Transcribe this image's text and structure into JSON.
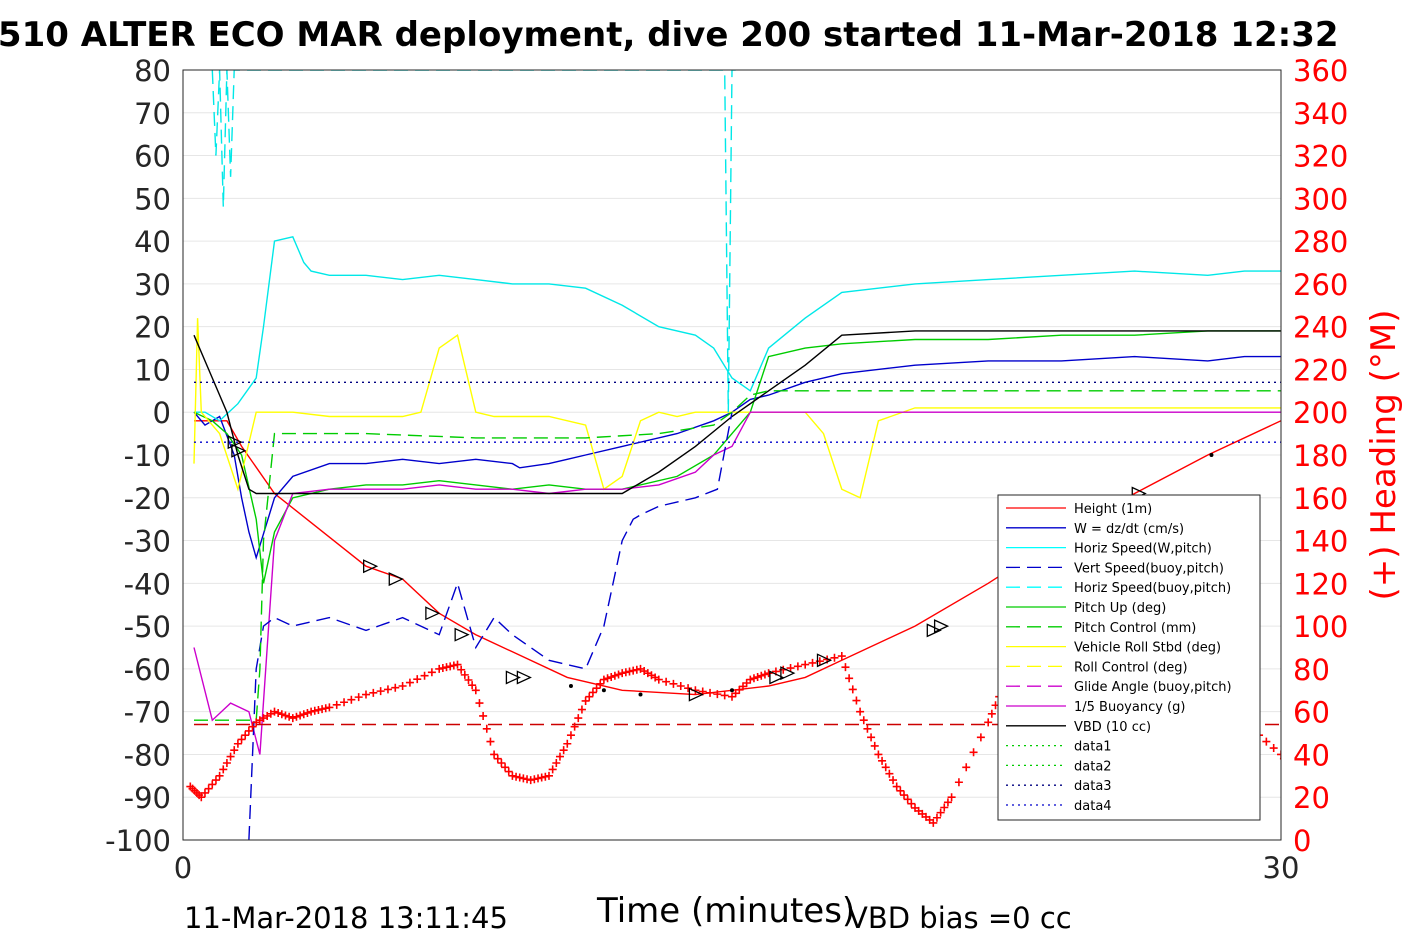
{
  "chart_data": {
    "type": "line",
    "title": "G510 ALTER ECO MAR deployment, dive 200 started 11-Mar-2018 12:32",
    "xlabel": "Time (minutes)",
    "ylabel_right": "(+) Heading (°M)",
    "xlim": [
      0,
      30
    ],
    "ylim_left": [
      -100,
      80
    ],
    "ylim_right": [
      0,
      360
    ],
    "xticks": [
      "0",
      "30"
    ],
    "yticks_left": [
      "80",
      "70",
      "60",
      "50",
      "40",
      "30",
      "20",
      "10",
      "0",
      "-10",
      "-20",
      "-30",
      "-40",
      "-50",
      "-60",
      "-70",
      "-80",
      "-90",
      "-100"
    ],
    "yticks_right": [
      "360",
      "340",
      "320",
      "300",
      "280",
      "260",
      "240",
      "220",
      "200",
      "180",
      "160",
      "140",
      "120",
      "100",
      "80",
      "60",
      "40",
      "20",
      "0"
    ],
    "grid": "horizontal",
    "legend_position": "bottom-right",
    "footer_left": "11-Mar-2018 13:11:45",
    "footer_right": "VBD bias =0 cc",
    "colors": {
      "height": "#ff0000",
      "w": "#0000cc",
      "horiz": "#00ffff",
      "pitch": "#00cc00",
      "roll": "#ffff00",
      "glide": "#cc00cc",
      "vbd": "#000000",
      "heading": "#ff0000"
    },
    "legend": [
      {
        "label": "Height (1m)",
        "color": "#ff0000",
        "dash": "solid"
      },
      {
        "label": "W = dz/dt (cm/s)",
        "color": "#0000cc",
        "dash": "solid"
      },
      {
        "label": "Horiz Speed(W,pitch)",
        "color": "#00ffff",
        "dash": "solid"
      },
      {
        "label": "Vert Speed(buoy,pitch)",
        "color": "#0000cc",
        "dash": "dashed"
      },
      {
        "label": "Horiz Speed(buoy,pitch)",
        "color": "#00ffff",
        "dash": "dashed"
      },
      {
        "label": "Pitch Up (deg)",
        "color": "#00cc00",
        "dash": "solid"
      },
      {
        "label": "Pitch Control (mm)",
        "color": "#00cc00",
        "dash": "dashed"
      },
      {
        "label": "Vehicle Roll Stbd (deg)",
        "color": "#ffff00",
        "dash": "solid"
      },
      {
        "label": "Roll Control (deg)",
        "color": "#ffff00",
        "dash": "dashed"
      },
      {
        "label": "Glide Angle (buoy,pitch)",
        "color": "#cc00cc",
        "dash": "dashed"
      },
      {
        "label": "1/5 Buoyancy (g)",
        "color": "#cc00cc",
        "dash": "solid"
      },
      {
        "label": "VBD (10 cc)",
        "color": "#000000",
        "dash": "solid"
      },
      {
        "label": "data1",
        "color": "#00cc00",
        "dash": "dotted"
      },
      {
        "label": "data2",
        "color": "#00cc00",
        "dash": "dotted"
      },
      {
        "label": "data3",
        "color": "#000080",
        "dash": "dotted"
      },
      {
        "label": "data4",
        "color": "#0000cc",
        "dash": "dotted"
      }
    ],
    "series": [
      {
        "key": "height",
        "x": [
          0.3,
          1.2,
          1.6,
          2.5,
          5.0,
          6.0,
          7.0,
          8.0,
          9.0,
          10.5,
          12.0,
          14.0,
          16.0,
          17.0,
          18.0,
          20.0,
          22.0,
          24.0,
          26.0,
          28.0,
          30.5
        ],
        "y": [
          -2,
          -2,
          -8,
          -19,
          -36,
          -39,
          -47,
          -52,
          -56,
          -62,
          -65,
          -66,
          -64,
          -62,
          -58,
          -50,
          -40,
          -29,
          -19,
          -10,
          0
        ]
      },
      {
        "key": "w",
        "x": [
          0.3,
          0.6,
          1.0,
          1.4,
          1.6,
          1.8,
          2.0,
          2.5,
          3.0,
          4.0,
          5.0,
          6.0,
          7.0,
          8.0,
          9.0,
          9.2,
          10.0,
          10.5,
          11.0,
          12.0,
          13.5,
          14.5,
          15.0,
          15.5,
          16.0,
          17.0,
          18.0,
          20.0,
          22.0,
          24.0,
          26.0,
          28.0,
          29.0,
          30.5
        ],
        "y": [
          0,
          -3,
          -1,
          -10,
          -20,
          -28,
          -34,
          -20,
          -15,
          -12,
          -12,
          -11,
          -12,
          -11,
          -12,
          -13,
          -12,
          -11,
          -10,
          -8,
          -5,
          -2,
          0,
          3,
          4,
          7,
          9,
          11,
          12,
          12,
          13,
          12,
          13,
          13
        ]
      },
      {
        "key": "horiz",
        "x": [
          0.3,
          0.6,
          1.0,
          1.5,
          2.0,
          2.2,
          2.5,
          3.0,
          3.3,
          3.5,
          4.0,
          5.0,
          6.0,
          7.0,
          8.0,
          9.0,
          10.0,
          11.0,
          12.0,
          13.0,
          14.0,
          14.5,
          15.0,
          15.5,
          16.0,
          17.0,
          18.0,
          20.0,
          22.0,
          24.0,
          26.0,
          28.0,
          29.0,
          30.4,
          30.5
        ],
        "y": [
          0,
          0,
          -2,
          2,
          8,
          20,
          40,
          41,
          35,
          33,
          32,
          32,
          31,
          32,
          31,
          30,
          30,
          29,
          25,
          20,
          18,
          15,
          8,
          5,
          15,
          22,
          28,
          30,
          31,
          32,
          33,
          32,
          33,
          33,
          80
        ]
      },
      {
        "key": "pitch_up",
        "x": [
          0.3,
          0.8,
          1.2,
          1.6,
          2.0,
          2.2,
          2.5,
          3.0,
          4.0,
          5.0,
          6.0,
          7.0,
          8.0,
          9.0,
          10.0,
          11.0,
          12.0,
          13.5,
          14.5,
          15.0,
          15.5,
          16.0,
          17.0,
          18.0,
          20.0,
          22.0,
          24.0,
          26.0,
          28.0,
          30.5
        ],
        "y": [
          0,
          -2,
          -5,
          -10,
          -25,
          -40,
          -28,
          -20,
          -18,
          -17,
          -17,
          -16,
          -17,
          -18,
          -17,
          -18,
          -18,
          -15,
          -10,
          -5,
          0,
          13,
          15,
          16,
          17,
          17,
          18,
          18,
          19,
          19
        ]
      },
      {
        "key": "roll",
        "x": [
          0.3,
          0.4,
          0.5,
          1.0,
          1.5,
          2.0,
          3.0,
          4.0,
          5.0,
          6.0,
          6.5,
          7.0,
          7.5,
          8.0,
          8.5,
          9.0,
          10.0,
          11.0,
          11.5,
          12.0,
          12.5,
          13.0,
          13.5,
          14.0,
          15.0,
          16.0,
          17.0,
          17.5,
          18.0,
          18.5,
          19.0,
          20.0,
          21.0,
          22.0,
          23.0,
          24.0,
          25.0,
          26.0,
          26.5,
          27.0,
          28.0,
          29.0,
          30.5
        ],
        "y": [
          -12,
          22,
          0,
          -5,
          -18,
          0,
          0,
          -1,
          -1,
          -1,
          0,
          15,
          18,
          0,
          -1,
          -1,
          -1,
          -3,
          -18,
          -15,
          -2,
          0,
          -1,
          0,
          0,
          0,
          0,
          -5,
          -18,
          -20,
          -2,
          1,
          1,
          1,
          1,
          1,
          1,
          1,
          1,
          1,
          1,
          1,
          1
        ]
      },
      {
        "key": "glide",
        "x": [
          0.3,
          0.8,
          1.3,
          1.8,
          2.1,
          2.5,
          3.0,
          4.0,
          5.0,
          6.0,
          7.0,
          8.0,
          9.0,
          10.0,
          11.0,
          12.0,
          13.0,
          14.0,
          14.5,
          15.0,
          15.5,
          30.5
        ],
        "y": [
          -55,
          -72,
          -68,
          -70,
          -80,
          -30,
          -19,
          -18,
          -18,
          -18,
          -17,
          -18,
          -18,
          -19,
          -18,
          -18,
          -17,
          -14,
          -10,
          -8,
          0,
          0
        ]
      },
      {
        "key": "vbd",
        "x": [
          0.3,
          0.8,
          1.2,
          1.5,
          1.8,
          2.0,
          3.0,
          5.0,
          7.0,
          9.0,
          10.0,
          11.0,
          12.0,
          13.0,
          14.0,
          15.0,
          16.0,
          17.0,
          18.0,
          20.0,
          22.0,
          24.0,
          26.0,
          28.0,
          30.5
        ],
        "y": [
          18,
          8,
          0,
          -10,
          -18,
          -19,
          -19,
          -19,
          -19,
          -19,
          -19,
          -19,
          -19,
          -14,
          -8,
          -1,
          5,
          11,
          18,
          19,
          19,
          19,
          19,
          19,
          19
        ]
      },
      {
        "key": "vert_buoy",
        "x": [
          1.8,
          2.0,
          2.2,
          2.5,
          3.0,
          4.0,
          5.0,
          6.0,
          7.0,
          7.5,
          8.0,
          8.5,
          9.0,
          10.0,
          11.0,
          11.5,
          12.0,
          12.3,
          12.5,
          13.0,
          14.0,
          14.6,
          15.0
        ],
        "y": [
          -100,
          -60,
          -50,
          -48,
          -50,
          -48,
          -51,
          -48,
          -52,
          -40,
          -55,
          -48,
          -52,
          -58,
          -60,
          -50,
          -30,
          -25,
          -24,
          -22,
          -20,
          -18,
          0
        ]
      },
      {
        "key": "horiz_buoy",
        "x": [
          0.8,
          0.9,
          1.0,
          1.1,
          1.2,
          1.3,
          1.4,
          14.8,
          14.9,
          15.0,
          15.1
        ],
        "y": [
          80,
          60,
          80,
          48,
          80,
          55,
          80,
          80,
          0,
          80,
          80
        ]
      },
      {
        "key": "pitch_ctrl",
        "x": [
          0.3,
          1.0,
          1.5,
          2.0,
          2.1,
          2.2,
          2.5,
          5.0,
          8.0,
          11.0,
          13.0,
          14.5,
          15.0,
          15.5,
          16.0,
          30.5
        ],
        "y": [
          -72,
          -72,
          -72,
          -72,
          -60,
          -30,
          -5,
          -5,
          -6,
          -6,
          -5,
          -3,
          0,
          4,
          5,
          5
        ]
      },
      {
        "key": "data3",
        "x": [
          0.3,
          30.5
        ],
        "y": [
          7,
          7
        ]
      },
      {
        "key": "data4",
        "x": [
          0.3,
          30.5
        ],
        "y": [
          -7,
          -7
        ]
      },
      {
        "key": "dashed_red",
        "x": [
          0.3,
          30.5
        ],
        "y": [
          -73,
          -73
        ]
      },
      {
        "key": "heading",
        "x": [
          0.2,
          0.5,
          1.0,
          1.5,
          2.0,
          2.5,
          3.0,
          3.5,
          4.0,
          5.0,
          6.0,
          7.0,
          7.5,
          8.0,
          8.5,
          9.0,
          9.5,
          10.0,
          10.5,
          11.0,
          11.5,
          12.0,
          12.5,
          13.0,
          14.0,
          15.0,
          15.5,
          16.0,
          17.0,
          18.0,
          18.5,
          19.0,
          19.5,
          20.0,
          20.5,
          21.0,
          22.0,
          22.5,
          23.0,
          24.0,
          25.0,
          26.0,
          26.5,
          27.0,
          28.0,
          29.0,
          30.0,
          30.4
        ],
        "y": [
          25,
          20,
          30,
          45,
          55,
          60,
          57,
          60,
          62,
          68,
          72,
          80,
          82,
          70,
          40,
          30,
          28,
          30,
          45,
          65,
          75,
          78,
          80,
          75,
          70,
          67,
          75,
          78,
          82,
          86,
          60,
          40,
          25,
          15,
          8,
          20,
          55,
          75,
          82,
          80,
          70,
          45,
          65,
          85,
          75,
          55,
          40,
          30
        ]
      }
    ],
    "markers_triangle": [
      [
        1.4,
        -7
      ],
      [
        1.5,
        -9
      ],
      [
        5.1,
        -36
      ],
      [
        5.8,
        -39
      ],
      [
        6.8,
        -47
      ],
      [
        7.6,
        -52
      ],
      [
        9.0,
        -62
      ],
      [
        9.3,
        -62
      ],
      [
        14.0,
        -66
      ],
      [
        16.2,
        -62
      ],
      [
        16.5,
        -61
      ],
      [
        17.5,
        -58
      ],
      [
        20.5,
        -51
      ],
      [
        20.7,
        -50
      ],
      [
        22.6,
        -40
      ],
      [
        24.8,
        -25
      ],
      [
        26.1,
        -19
      ]
    ],
    "markers_dot": [
      [
        10.6,
        -64
      ],
      [
        11.5,
        -65
      ],
      [
        12.5,
        -66
      ],
      [
        15.0,
        -65
      ],
      [
        24.0,
        -32
      ],
      [
        28.1,
        -10
      ]
    ]
  }
}
